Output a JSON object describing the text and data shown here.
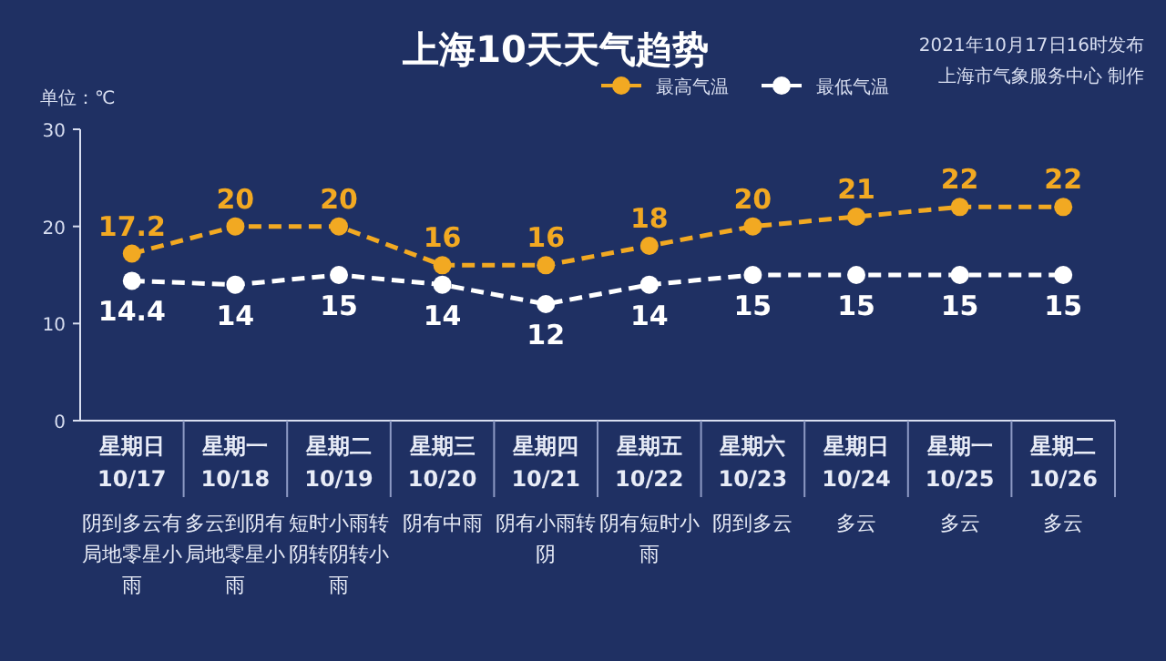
{
  "chart_data": {
    "type": "line",
    "title": "上海10天天气趋势",
    "ylabel": "单位：℃",
    "annotations": [
      "2021年10月17日16时发布",
      "上海市气象服务中心 制作",
      "阴到多云有局地零星小雨",
      "多云到阴有局地零星小雨",
      "短时小雨转阴转阴转小雨",
      "阴有中雨",
      "阴有小雨转阴",
      "阴有短时小雨",
      "阴到多云",
      "多云",
      "多云",
      "多云"
    ],
    "categories": [
      "星期日\n10/17",
      "星期一\n10/18",
      "星期二\n10/19",
      "星期三\n10/20",
      "星期四\n10/21",
      "星期五\n10/22",
      "星期六\n10/23",
      "星期日\n10/24",
      "星期一\n10/25",
      "星期二\n10/26"
    ],
    "series": [
      {
        "name": "最高气温",
        "color": "#f2a922",
        "values": [
          17.2,
          20,
          20,
          16,
          16,
          18,
          20,
          21,
          22,
          22
        ]
      },
      {
        "name": "最低气温",
        "color": "#ffffff",
        "values": [
          14.4,
          14,
          15,
          14,
          12,
          14,
          15,
          15,
          15,
          15
        ]
      }
    ],
    "ylim": [
      0,
      30
    ],
    "yticks": [
      0,
      10,
      20,
      30
    ],
    "grid": false,
    "legend": "top right",
    "marker": "circle",
    "line_style": "dashed",
    "data_labels": true
  }
}
